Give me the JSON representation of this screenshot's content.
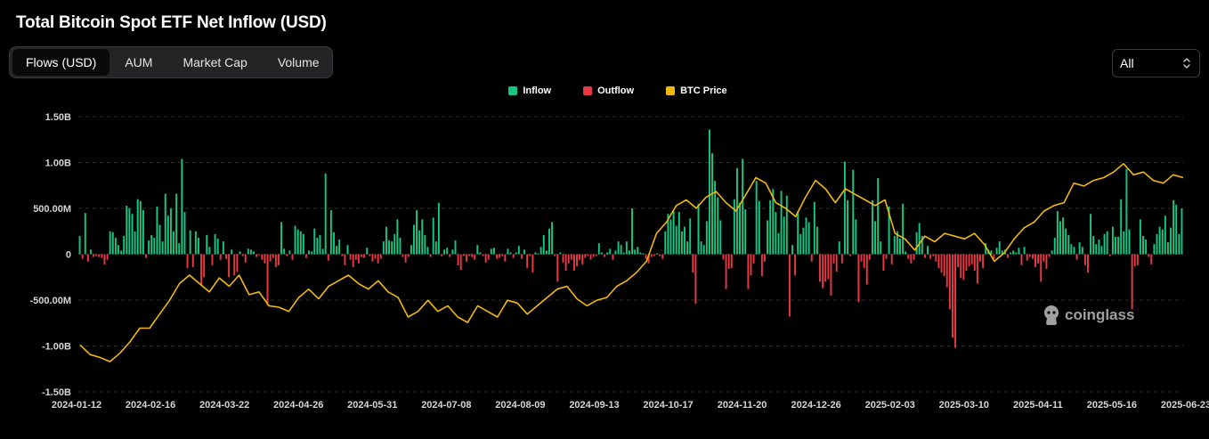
{
  "page": {
    "title": "Total Bitcoin Spot ETF Net Inflow (USD)"
  },
  "tabs": [
    {
      "label": "Flows (USD)",
      "active": true
    },
    {
      "label": "AUM",
      "active": false
    },
    {
      "label": "Market Cap",
      "active": false
    },
    {
      "label": "Volume",
      "active": false
    }
  ],
  "range_select": {
    "value": "All"
  },
  "watermark": {
    "text": "coinglass"
  },
  "colors": {
    "inflow": "#16c784",
    "outflow": "#ea3943",
    "price": "#f0b90b"
  },
  "chart_data": {
    "type": "bar",
    "title": "Total Bitcoin Spot ETF Net Inflow (USD)",
    "legend": [
      "Inflow",
      "Outflow",
      "BTC Price"
    ],
    "legend_position": "top-center",
    "grid": true,
    "ylim": [
      -1500000000,
      1500000000
    ],
    "y_ticks": [
      {
        "value": 1500000000,
        "label": "1.50B"
      },
      {
        "value": 1000000000,
        "label": "1.00B"
      },
      {
        "value": 500000000,
        "label": "500.00M"
      },
      {
        "value": 0,
        "label": "0"
      },
      {
        "value": -500000000,
        "label": "-500.00M"
      },
      {
        "value": -1000000000,
        "label": "-1.00B"
      },
      {
        "value": -1500000000,
        "label": "-1.50B"
      }
    ],
    "x_ticks": [
      "2024-01-12",
      "2024-02-16",
      "2024-03-22",
      "2024-04-26",
      "2024-05-31",
      "2024-07-08",
      "2024-08-09",
      "2024-09-13",
      "2024-10-17",
      "2024-11-20",
      "2024-12-26",
      "2025-02-03",
      "2025-03-10",
      "2025-04-11",
      "2025-05-16",
      "2025-06-23"
    ],
    "x_range": [
      "2024-01-11",
      "2025-06-25"
    ],
    "flows_musd": [
      200,
      -50,
      450,
      -80,
      50,
      -30,
      -20,
      -30,
      -40,
      -110,
      -60,
      250,
      240,
      180,
      100,
      40,
      200,
      530,
      500,
      440,
      250,
      600,
      580,
      480,
      -40,
      150,
      210,
      180,
      520,
      320,
      140,
      660,
      420,
      500,
      250,
      660,
      120,
      1040,
      460,
      -150,
      260,
      -140,
      250,
      180,
      -330,
      -250,
      210,
      80,
      -120,
      220,
      170,
      -60,
      140,
      -50,
      -250,
      50,
      -230,
      -190,
      30,
      -20,
      -90,
      60,
      50,
      30,
      -30,
      -10,
      -60,
      -100,
      -560,
      -80,
      -40,
      -140,
      -120,
      350,
      60,
      -20,
      40,
      -60,
      310,
      270,
      250,
      220,
      -40,
      40,
      30,
      280,
      180,
      210,
      60,
      880,
      -70,
      480,
      240,
      90,
      160,
      -20,
      -120,
      100,
      -60,
      -140,
      -60,
      -100,
      -30,
      -40,
      70,
      -20,
      -80,
      -50,
      -100,
      -50,
      140,
      300,
      150,
      140,
      220,
      380,
      180,
      -30,
      -90,
      -30,
      100,
      320,
      480,
      260,
      380,
      210,
      80,
      -30,
      400,
      140,
      560,
      -20,
      50,
      70,
      -30,
      50,
      150,
      -120,
      -170,
      -20,
      -80,
      -20,
      -30,
      -60,
      100,
      20,
      -20,
      -90,
      -60,
      60,
      70,
      -50,
      -40,
      -20,
      -80,
      60,
      20,
      -40,
      20,
      90,
      -50,
      50,
      -150,
      -20,
      -200,
      20,
      10,
      80,
      210,
      40,
      280,
      350,
      -20,
      -300,
      20,
      -90,
      -180,
      -100,
      -60,
      -180,
      -130,
      -60,
      -110,
      -40,
      -20,
      -60,
      -30,
      -20,
      120,
      20,
      -30,
      20,
      60,
      -60,
      40,
      140,
      100,
      20,
      140,
      40,
      500,
      50,
      80,
      20,
      10,
      -50,
      -100,
      -30,
      -20,
      10,
      -20,
      -50,
      250,
      440,
      380,
      470,
      310,
      460,
      250,
      300,
      140,
      390,
      -200,
      -540,
      550,
      140,
      100,
      360,
      1360,
      1100,
      800,
      620,
      370,
      -60,
      -380,
      -160,
      -150,
      600,
      940,
      560,
      1040,
      490,
      -380,
      -230,
      -100,
      800,
      580,
      -240,
      -80,
      370,
      590,
      710,
      460,
      230,
      690,
      410,
      640,
      -680,
      100,
      -230,
      470,
      220,
      290,
      400,
      350,
      -80,
      570,
      300,
      -300,
      -370,
      -300,
      -270,
      -450,
      -100,
      -190,
      140,
      -100,
      1010,
      590,
      -20,
      920,
      380,
      -520,
      -80,
      -150,
      -330,
      -60,
      590,
      360,
      830,
      140,
      -180,
      -50,
      520,
      -110,
      200,
      250,
      170,
      550,
      30,
      -50,
      -100,
      -60,
      240,
      340,
      200,
      -40,
      90,
      -50,
      -20,
      -80,
      -150,
      -200,
      -240,
      -360,
      -600,
      -910,
      -1020,
      -140,
      -260,
      -280,
      -180,
      -130,
      -110,
      -180,
      -320,
      -80,
      -150,
      120,
      50,
      40,
      -50,
      70,
      140,
      40,
      50,
      -40,
      20,
      40,
      20,
      70,
      -120,
      80,
      -70,
      -30,
      -50,
      -140,
      -100,
      -300,
      -80,
      -160,
      -30,
      40,
      180,
      470,
      360,
      400,
      280,
      210,
      110,
      80,
      -60,
      130,
      80,
      -120,
      -200,
      440,
      200,
      110,
      160,
      90,
      220,
      250,
      -20,
      300,
      190,
      190,
      600,
      250,
      930,
      270,
      -600,
      -130,
      -120,
      380,
      200,
      160,
      -30,
      -110,
      110,
      220,
      300,
      270,
      420,
      130,
      290,
      590,
      540,
      220,
      500
    ],
    "btc_price_usd": [
      46000,
      42500,
      41500,
      40000,
      43000,
      47000,
      52000,
      52000,
      57000,
      62000,
      68000,
      71000,
      68000,
      65000,
      70000,
      67000,
      71000,
      64000,
      65000,
      60000,
      59500,
      58000,
      63000,
      66000,
      62500,
      67000,
      69000,
      71000,
      68000,
      66000,
      69000,
      65000,
      63000,
      56000,
      58000,
      62000,
      58000,
      60000,
      56000,
      54000,
      60000,
      58000,
      56000,
      62000,
      61000,
      57000,
      60000,
      63000,
      66000,
      67000,
      62500,
      60000,
      62000,
      63000,
      67000,
      69000,
      72000,
      76000,
      86000,
      90000,
      96000,
      98000,
      95000,
      99000,
      101000,
      97000,
      94000,
      100000,
      106000,
      104000,
      97000,
      95000,
      92000,
      99000,
      105000,
      102000,
      97000,
      102000,
      100000,
      98000,
      96000,
      98000,
      86000,
      84000,
      80000,
      85000,
      83000,
      86000,
      85000,
      84000,
      86000,
      82000,
      76000,
      79000,
      84000,
      88000,
      90000,
      94000,
      96000,
      97000,
      104000,
      103000,
      105000,
      106000,
      108000,
      111000,
      107000,
      108000,
      105000,
      104000,
      107000,
      106000
    ]
  }
}
